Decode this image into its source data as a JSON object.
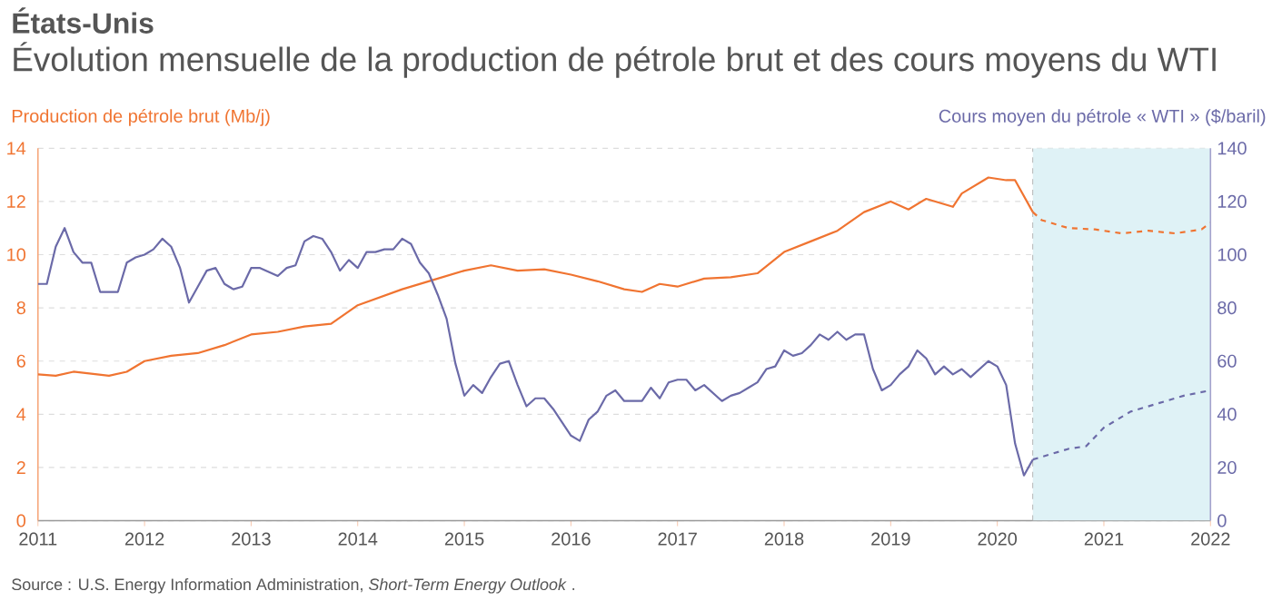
{
  "chart_data": {
    "type": "line",
    "title": "États-Unis",
    "subtitle": "Évolution mensuelle de la production de pétrole brut et des cours moyens du WTI",
    "ylabel": "Production de pétrole brut (Mb/j)",
    "y2label": "Cours moyen du pétrole « WTI » ($/baril)",
    "annotations": [
      "Source : U.S. Energy Information Administration, *Short-Term Energy Outlook* ."
    ],
    "xlim": [
      "2011",
      "2022"
    ],
    "xticks": [
      "2011",
      "2012",
      "2013",
      "2014",
      "2015",
      "2016",
      "2017",
      "2018",
      "2019",
      "2020",
      "2021",
      "2022"
    ],
    "ylim": [
      0,
      14
    ],
    "yticks": [
      0,
      2,
      4,
      6,
      8,
      10,
      12,
      14
    ],
    "y2lim": [
      0,
      140
    ],
    "y2ticks": [
      0,
      20,
      40,
      60,
      80,
      100,
      120,
      140
    ],
    "grid": "y",
    "series": [
      {
        "color": "#f07431",
        "axis": "y",
        "line_style": "solid",
        "x": [
          "2011-01",
          "2011-03",
          "2011-05",
          "2011-09",
          "2011-11",
          "2012-01",
          "2012-04",
          "2012-07",
          "2012-10",
          "2013-01",
          "2013-04",
          "2013-07",
          "2013-10",
          "2014-01",
          "2014-06",
          "2014-10",
          "2015-01",
          "2015-04",
          "2015-07",
          "2015-10",
          "2016-01",
          "2016-04",
          "2016-07",
          "2016-09",
          "2016-11",
          "2017-01",
          "2017-04",
          "2017-07",
          "2017-10",
          "2018-01",
          "2018-04",
          "2018-07",
          "2018-10",
          "2019-01",
          "2019-03",
          "2019-05",
          "2019-08",
          "2019-09",
          "2019-12",
          "2020-02",
          "2020-03",
          "2020-05"
        ],
        "values": [
          5.5,
          5.45,
          5.6,
          5.45,
          5.6,
          6.0,
          6.2,
          6.3,
          6.6,
          7.0,
          7.1,
          7.3,
          7.4,
          8.1,
          8.7,
          9.1,
          9.4,
          9.6,
          9.4,
          9.45,
          9.25,
          9.0,
          8.7,
          8.6,
          8.9,
          8.8,
          9.1,
          9.15,
          9.3,
          10.1,
          10.5,
          10.9,
          11.6,
          12.0,
          11.7,
          12.1,
          11.8,
          12.3,
          12.9,
          12.8,
          12.8,
          11.6
        ]
      },
      {
        "color": "#f07431",
        "axis": "y",
        "line_style": "dashed",
        "x": [
          "2020-05",
          "2020-06",
          "2020-09",
          "2020-12",
          "2021-03",
          "2021-06",
          "2021-09",
          "2021-12",
          "2022-01"
        ],
        "values": [
          11.6,
          11.3,
          11.0,
          10.95,
          10.8,
          10.9,
          10.8,
          10.95,
          11.2
        ]
      },
      {
        "color": "#6b6aa8",
        "axis": "y2",
        "line_style": "solid",
        "x": [
          "2011-01",
          "2011-02",
          "2011-03",
          "2011-04",
          "2011-05",
          "2011-06",
          "2011-07",
          "2011-08",
          "2011-10",
          "2011-11",
          "2011-12",
          "2012-01",
          "2012-02",
          "2012-03",
          "2012-04",
          "2012-05",
          "2012-06",
          "2012-07",
          "2012-08",
          "2012-09",
          "2012-10",
          "2012-11",
          "2012-12",
          "2013-01",
          "2013-02",
          "2013-04",
          "2013-05",
          "2013-06",
          "2013-07",
          "2013-08",
          "2013-09",
          "2013-10",
          "2013-11",
          "2013-12",
          "2014-01",
          "2014-02",
          "2014-03",
          "2014-04",
          "2014-05",
          "2014-06",
          "2014-07",
          "2014-08",
          "2014-09",
          "2014-10",
          "2014-11",
          "2014-12",
          "2015-01",
          "2015-02",
          "2015-03",
          "2015-04",
          "2015-05",
          "2015-06",
          "2015-07",
          "2015-08",
          "2015-09",
          "2015-10",
          "2015-11",
          "2015-12",
          "2016-01",
          "2016-02",
          "2016-03",
          "2016-04",
          "2016-05",
          "2016-06",
          "2016-07",
          "2016-08",
          "2016-09",
          "2016-10",
          "2016-11",
          "2016-12",
          "2017-01",
          "2017-02",
          "2017-03",
          "2017-04",
          "2017-05",
          "2017-06",
          "2017-07",
          "2017-08",
          "2017-09",
          "2017-10",
          "2017-11",
          "2017-12",
          "2018-01",
          "2018-02",
          "2018-03",
          "2018-04",
          "2018-05",
          "2018-06",
          "2018-07",
          "2018-08",
          "2018-09",
          "2018-10",
          "2018-11",
          "2018-12",
          "2019-01",
          "2019-02",
          "2019-03",
          "2019-04",
          "2019-05",
          "2019-06",
          "2019-07",
          "2019-08",
          "2019-09",
          "2019-10",
          "2019-11",
          "2019-12",
          "2020-01",
          "2020-02",
          "2020-03",
          "2020-04",
          "2020-05"
        ],
        "values": [
          89,
          89,
          103,
          110,
          101,
          97,
          97,
          86,
          86,
          97,
          99,
          100,
          102,
          106,
          103,
          95,
          82,
          88,
          94,
          95,
          89,
          87,
          88,
          95,
          95,
          92,
          95,
          96,
          105,
          107,
          106,
          101,
          94,
          98,
          95,
          101,
          101,
          102,
          102,
          106,
          104,
          97,
          93,
          85,
          76,
          59,
          47,
          51,
          48,
          54,
          59,
          60,
          51,
          43,
          46,
          46,
          42,
          37,
          32,
          30,
          38,
          41,
          47,
          49,
          45,
          45,
          45,
          50,
          46,
          52,
          53,
          53,
          49,
          51,
          48,
          45,
          47,
          48,
          50,
          52,
          57,
          58,
          64,
          62,
          63,
          66,
          70,
          68,
          71,
          68,
          70,
          70,
          57,
          49,
          51,
          55,
          58,
          64,
          61,
          55,
          58,
          55,
          57,
          54,
          57,
          60,
          58,
          51,
          29,
          17,
          23
        ]
      },
      {
        "color": "#6b6aa8",
        "axis": "y2",
        "line_style": "dashed",
        "x": [
          "2020-05",
          "2020-06",
          "2020-09",
          "2020-11",
          "2021-01",
          "2021-04",
          "2021-07",
          "2021-10",
          "2022-01"
        ],
        "values": [
          23,
          24,
          27,
          28,
          35,
          41,
          44,
          47,
          49
        ]
      }
    ],
    "bands": [
      {
        "axis": "x",
        "from": "2020-05",
        "to": "2022-01",
        "color": "#dff2f6"
      }
    ],
    "ref_lines": [
      {
        "axis": "x",
        "value": "2020-05",
        "color": "#b4b4b4",
        "line_style": "dashed"
      }
    ]
  }
}
